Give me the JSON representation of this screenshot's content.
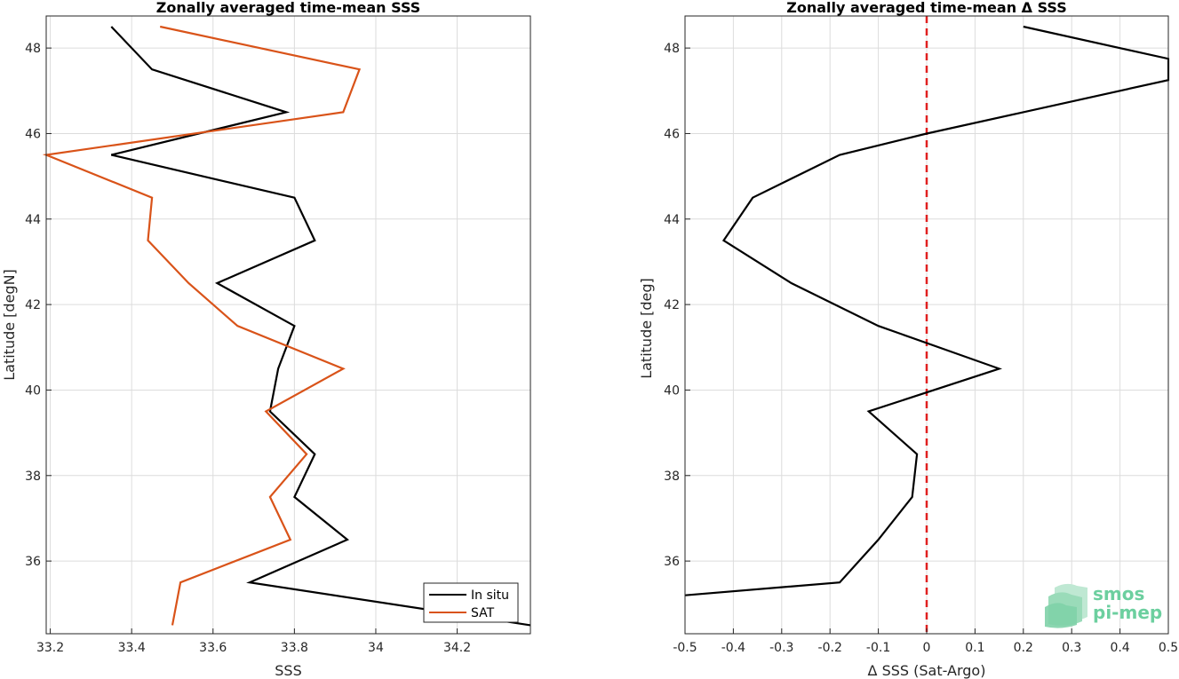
{
  "chart_data": [
    {
      "type": "line",
      "title": "Zonally averaged time-mean SSS",
      "xlabel": "SSS",
      "ylabel": "Latitude [degN]",
      "xlim": [
        33.19,
        34.38
      ],
      "ylim": [
        34.3,
        48.75
      ],
      "xticks": [
        33.2,
        33.4,
        33.6,
        33.8,
        34,
        34.2
      ],
      "xtick_labels": [
        "33.2",
        "33.4",
        "33.6",
        "33.8",
        "34",
        "34.2"
      ],
      "yticks": [
        36,
        38,
        40,
        42,
        44,
        46,
        48
      ],
      "ytick_labels": [
        "36",
        "38",
        "40",
        "42",
        "44",
        "46",
        "48"
      ],
      "grid": true,
      "legend_position": "bottom-right",
      "series": [
        {
          "name": "In situ",
          "color": "#000000",
          "x": [
            33.35,
            33.45,
            33.78,
            33.35,
            33.8,
            33.85,
            33.61,
            33.8,
            33.76,
            33.74,
            33.85,
            33.8,
            33.93,
            33.69,
            34.38
          ],
          "y": [
            48.5,
            47.5,
            46.5,
            45.5,
            44.5,
            43.5,
            42.5,
            41.5,
            40.5,
            39.5,
            38.5,
            37.5,
            36.5,
            35.5,
            34.5
          ]
        },
        {
          "name": "SAT",
          "color": "#d95319",
          "x": [
            33.47,
            33.96,
            33.92,
            33.19,
            33.45,
            33.44,
            33.54,
            33.66,
            33.92,
            33.73,
            33.83,
            33.74,
            33.79,
            33.52,
            33.5
          ],
          "y": [
            48.5,
            47.5,
            46.5,
            45.5,
            44.5,
            43.5,
            42.5,
            41.5,
            40.5,
            39.5,
            38.5,
            37.5,
            36.5,
            35.5,
            34.5
          ]
        }
      ]
    },
    {
      "type": "line",
      "title": "Zonally averaged time-mean Δ SSS",
      "xlabel": "Δ SSS (Sat-Argo)",
      "ylabel": "Latitude [deg]",
      "xlim": [
        -0.5,
        0.5
      ],
      "ylim": [
        34.3,
        48.75
      ],
      "xticks": [
        -0.5,
        -0.4,
        -0.3,
        -0.2,
        -0.1,
        0,
        0.1,
        0.2,
        0.3,
        0.4,
        0.5
      ],
      "xtick_labels": [
        "-0.5",
        "-0.4",
        "-0.3",
        "-0.2",
        "-0.1",
        "0",
        "0.1",
        "0.2",
        "0.3",
        "0.4",
        "0.5"
      ],
      "yticks": [
        36,
        38,
        40,
        42,
        44,
        46,
        48
      ],
      "ytick_labels": [
        "36",
        "38",
        "40",
        "42",
        "44",
        "46",
        "48"
      ],
      "grid": true,
      "reference_line": {
        "x": 0,
        "color": "#e02020",
        "style": "dashed"
      },
      "series": [
        {
          "color": "#000000",
          "x": [
            0.2,
            0.5,
            0.5,
            0.0,
            -0.18,
            -0.36,
            -0.42,
            -0.28,
            -0.1,
            0.15,
            -0.12,
            -0.02,
            -0.03,
            -0.1,
            -0.18,
            -0.5
          ],
          "y": [
            48.5,
            47.75,
            47.25,
            46.0,
            45.5,
            44.5,
            43.5,
            42.5,
            41.5,
            40.5,
            39.5,
            38.5,
            37.5,
            36.5,
            35.5,
            35.2
          ]
        }
      ]
    }
  ],
  "logo": {
    "line1": "smos",
    "line2": "pi-mep",
    "color": "#6ccf9f"
  }
}
